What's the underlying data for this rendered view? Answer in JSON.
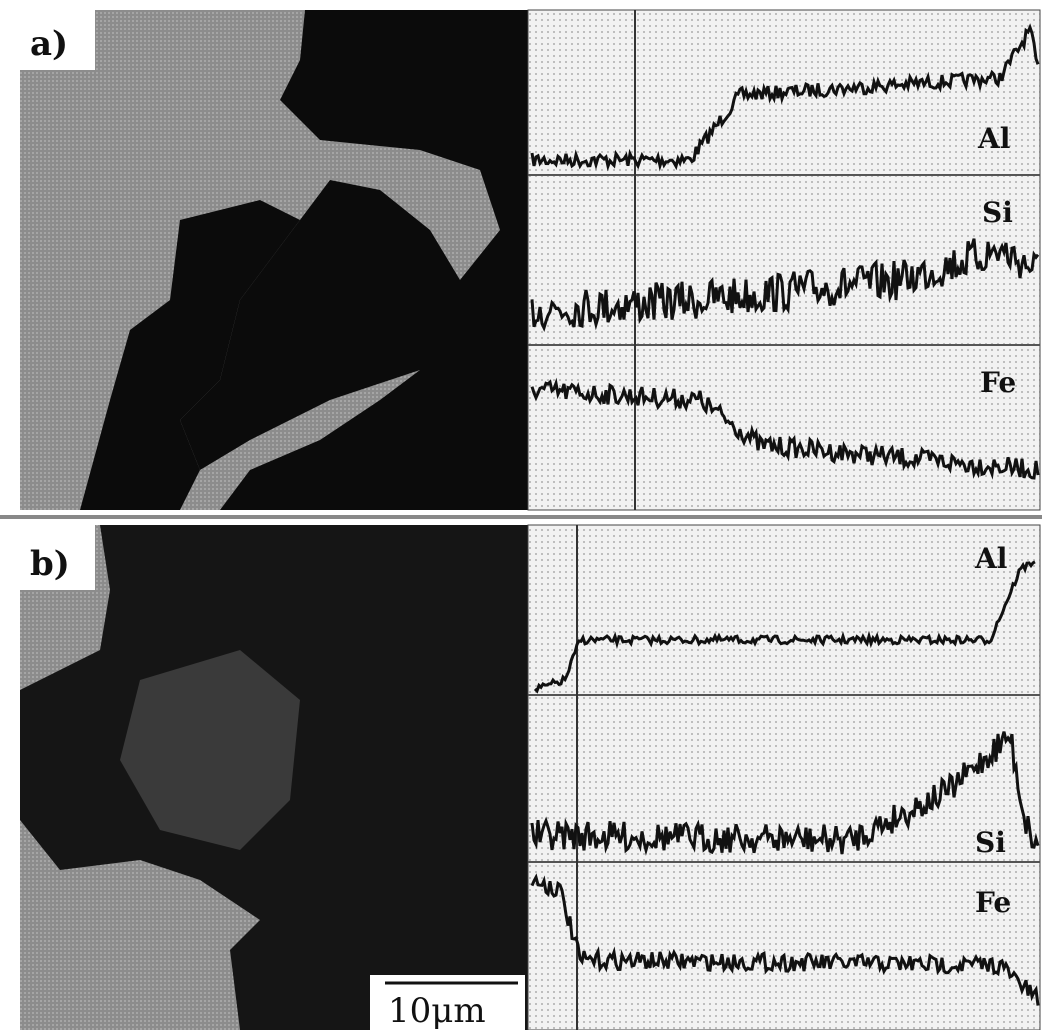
{
  "panels": [
    {
      "label": "a)",
      "profiles": [
        "Al",
        "Si",
        "Fe"
      ]
    },
    {
      "label": "b)",
      "profiles": [
        "Al",
        "Si",
        "Fe"
      ],
      "scale_bar": "10μm"
    }
  ]
}
